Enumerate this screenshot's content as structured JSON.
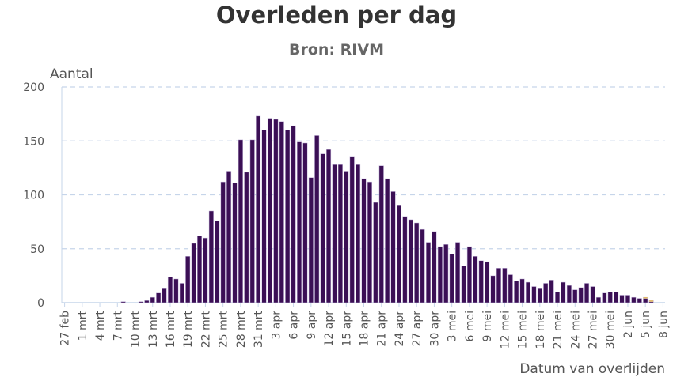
{
  "chart_data": {
    "type": "bar",
    "stacked": true,
    "title": "Overleden per dag",
    "subtitle": "Bron: RIVM",
    "ylabel": "Aantal",
    "xlabel": "Datum van overlijden",
    "ylim": [
      0,
      200
    ],
    "yticks": [
      0,
      50,
      100,
      150,
      200
    ],
    "grid": true,
    "categories_start": "27 feb",
    "categories_end": "8 jun",
    "xtick_labels": [
      "27 feb",
      "1 mrt",
      "4 mrt",
      "7 mrt",
      "10 mrt",
      "13 mrt",
      "16 mrt",
      "19 mrt",
      "22 mrt",
      "25 mrt",
      "28 mrt",
      "31 mrt",
      "3 apr",
      "6 apr",
      "9 apr",
      "12 apr",
      "15 apr",
      "18 apr",
      "21 apr",
      "24 apr",
      "27 apr",
      "30 apr",
      "3 mei",
      "6 mei",
      "9 mei",
      "12 mei",
      "15 mei",
      "18 mei",
      "21 mei",
      "24 mei",
      "27 mei",
      "30 mei",
      "2 jun",
      "5 jun",
      "8 jun"
    ],
    "series": [
      {
        "color": "#3b0f55",
        "values": [
          0,
          0,
          0,
          0,
          0,
          0,
          0,
          0,
          0,
          0,
          1,
          0,
          0,
          1,
          2,
          5,
          9,
          13,
          24,
          22,
          18,
          43,
          55,
          62,
          60,
          85,
          76,
          112,
          122,
          111,
          151,
          121,
          151,
          173,
          160,
          171,
          170,
          168,
          160,
          164,
          149,
          148,
          116,
          155,
          138,
          142,
          128,
          128,
          122,
          135,
          128,
          115,
          112,
          93,
          127,
          115,
          103,
          90,
          80,
          77,
          74,
          68,
          56,
          66,
          52,
          54,
          45,
          56,
          34,
          52,
          43,
          39,
          38,
          25,
          32,
          32,
          26,
          20,
          22,
          19,
          15,
          13,
          18,
          21,
          10,
          19,
          16,
          12,
          14,
          18,
          15,
          5,
          9,
          10,
          10,
          7,
          7,
          5,
          4,
          4,
          1,
          0,
          0
        ]
      },
      {
        "color": "#f5b400",
        "values": [
          0,
          0,
          0,
          0,
          0,
          0,
          0,
          0,
          0,
          0,
          0,
          0,
          0,
          0,
          0,
          0,
          0,
          0,
          0,
          0,
          0,
          0,
          0,
          0,
          0,
          0,
          0,
          0,
          0,
          0,
          0,
          0,
          0,
          0,
          0,
          0,
          0,
          0,
          0,
          0,
          0,
          0,
          0,
          0,
          0,
          0,
          0,
          0,
          0,
          0,
          0,
          0,
          0,
          0,
          0,
          0,
          0,
          0,
          0,
          0,
          0,
          0,
          0,
          0,
          0,
          0,
          0,
          0,
          0,
          0,
          0,
          0,
          0,
          0,
          0,
          0,
          0,
          0,
          0,
          0,
          0,
          0,
          0,
          0,
          0,
          0,
          0,
          0,
          0,
          0,
          0,
          0,
          0,
          0,
          0,
          0,
          0,
          0,
          0,
          1,
          1,
          0,
          0
        ]
      }
    ],
    "colors": {
      "grid": "#c6d5ea",
      "axis": "#c6d5ea",
      "bar_stroke": "#cbbfe0"
    }
  }
}
